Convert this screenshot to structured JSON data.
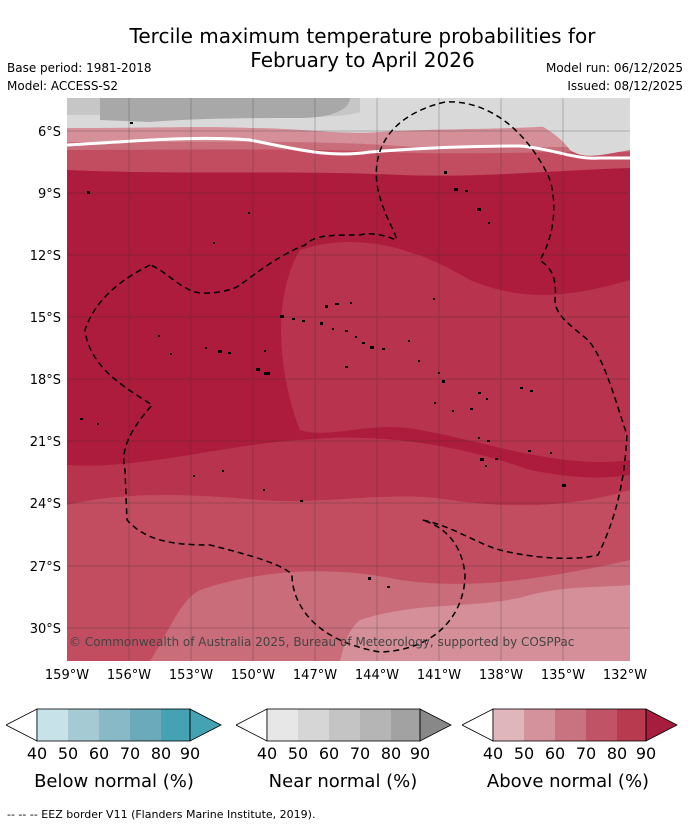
{
  "title_line1": "Tercile maximum temperature probabilities for",
  "title_line2": "February to April 2026",
  "base_period": "Base period: 1981-2018",
  "model": "Model: ACCESS-S2",
  "model_run": "Model run: 06/12/2025",
  "issued": "Issued: 08/12/2025",
  "map": {
    "lat_labels": [
      "6°S",
      "9°S",
      "12°S",
      "15°S",
      "18°S",
      "21°S",
      "24°S",
      "27°S",
      "30°S"
    ],
    "lon_labels": [
      "159°W",
      "156°W",
      "153°W",
      "150°W",
      "147°W",
      "144°W",
      "141°W",
      "138°W",
      "135°W",
      "132°W"
    ],
    "copyright": "© Commonwealth of Australia 2025, Bureau of Meteorology, supported by COSPPac",
    "colors": {
      "near_light": "#d9d9d9",
      "near_mid": "#c6c6c6",
      "near_dark": "#a8a8a8",
      "above_50": "#d48f99",
      "above_60": "#c96d7a",
      "above_70": "#c24d61",
      "above_80": "#b8334d",
      "above_90": "#ad1c3c"
    }
  },
  "legends": [
    {
      "title": "Below normal (%)",
      "ticks": [
        "40",
        "50",
        "60",
        "70",
        "80",
        "90"
      ],
      "colors": [
        "#c8e2ea",
        "#a6cad3",
        "#88b9c7",
        "#6aaaba",
        "#44a2b3"
      ]
    },
    {
      "title": "Near normal (%)",
      "ticks": [
        "40",
        "50",
        "60",
        "70",
        "80",
        "90"
      ],
      "colors": [
        "#e7e7e7",
        "#d6d6d6",
        "#c4c4c4",
        "#b5b5b5",
        "#a2a2a2"
      ]
    },
    {
      "title": "Above normal (%)",
      "ticks": [
        "40",
        "50",
        "60",
        "70",
        "80",
        "90"
      ],
      "colors": [
        "#e0b6bd",
        "#d4929c",
        "#c8737f",
        "#c05466",
        "#b73a4f"
      ]
    }
  ],
  "footnote": "-- -- -- EEZ border V11 (Flanders Marine Institute, 2019)."
}
